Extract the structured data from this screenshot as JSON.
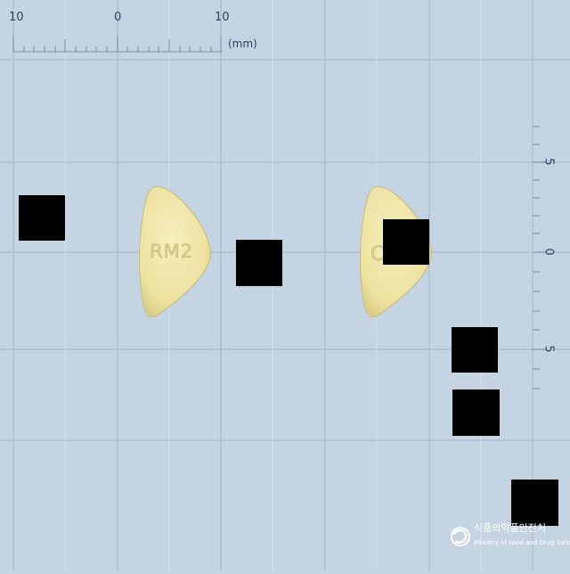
{
  "ruler": {
    "top_labels": [
      "10",
      "0",
      "10"
    ],
    "unit": "(mm)",
    "side_labels": [
      "5",
      "0",
      "5"
    ]
  },
  "tablets": [
    {
      "imprint": "RM2",
      "color": "#f0e6a6"
    },
    {
      "imprint": "C",
      "color": "#f0e6a6"
    }
  ],
  "logo": {
    "korean": "식품의약품안전처",
    "english": "Ministry of Food and Drug Safety"
  },
  "colors": {
    "background": "#c5d4e3",
    "grid": "#aebfd2",
    "tablet": "#f0e6a6",
    "redaction": "#000000"
  }
}
